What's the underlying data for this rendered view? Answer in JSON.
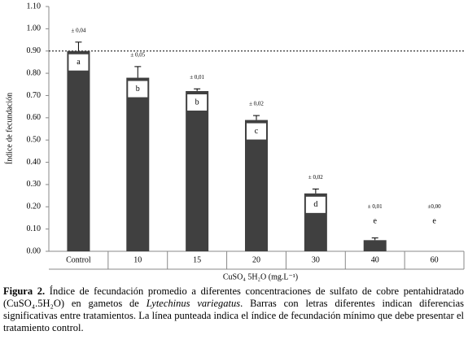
{
  "chart_data": {
    "type": "bar",
    "y_label": "Índice de fecundación",
    "x_label": "CuSO₄ 5H₂O (mg.L⁻¹)",
    "categories": [
      "Control",
      "10",
      "15",
      "20",
      "30",
      "40",
      "60"
    ],
    "values": [
      0.9,
      0.78,
      0.72,
      0.59,
      0.26,
      0.05,
      0.0
    ],
    "errors": [
      0.04,
      0.05,
      0.01,
      0.02,
      0.02,
      0.01,
      0.0
    ],
    "error_labels": [
      "± 0,04",
      "± 0,05",
      "± 0,01",
      "± 0,02",
      "± 0,02",
      "± 0,01",
      "±0,00"
    ],
    "letters": [
      "a",
      "b",
      "b",
      "c",
      "d",
      "e",
      "e"
    ],
    "color": "#404040",
    "reference_line": 0.9,
    "ylim": [
      0,
      1.1
    ],
    "yticks": [
      {
        "value": 0,
        "label": "0.00"
      },
      {
        "value": 0.1,
        "label": "0.10"
      },
      {
        "value": 0.2,
        "label": "0.20"
      },
      {
        "value": 0.3,
        "label": "0.30"
      },
      {
        "value": 0.4,
        "label": "0.40"
      },
      {
        "value": 0.5,
        "label": "0.50"
      },
      {
        "value": 0.6,
        "label": "0.60"
      },
      {
        "value": 0.7,
        "label": "0.70"
      },
      {
        "value": 0.8,
        "label": "0.80"
      },
      {
        "value": 0.9,
        "label": "0.90"
      },
      {
        "value": 1.0,
        "label": "1.00"
      },
      {
        "value": 1.1,
        "label": "1.10"
      }
    ]
  },
  "caption": {
    "label": "Figura 2.",
    "text_1": " Índice de fecundación promedio a diferentes concentraciones de sulfato de cobre pentahidratado (CuSO₄.5H₂O) en gametos de ",
    "species": "Lytechinus variegatus",
    "text_2": ". Barras con letras diferentes indican diferencias significativas entre tratamientos. La línea punteada indica el índice de fecundación mínimo que debe presentar el tratamiento control."
  }
}
